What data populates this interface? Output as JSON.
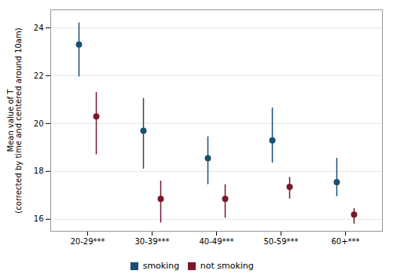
{
  "chart_data": {
    "type": "errorbar",
    "ylabel": "Mean value of T\n(corrected by time and centered around 10am)",
    "categories": [
      "20-29***",
      "30-39***",
      "40-49***",
      "50-59***",
      "60+***"
    ],
    "series": [
      {
        "name": "smoking",
        "color": "#1b4f72",
        "values": [
          23.3,
          19.7,
          18.55,
          19.3,
          17.55
        ],
        "ci_low": [
          21.95,
          18.1,
          17.45,
          18.35,
          16.95
        ],
        "ci_high": [
          24.2,
          21.05,
          19.45,
          20.65,
          18.55
        ]
      },
      {
        "name": "not smoking",
        "color": "#7b1728",
        "values": [
          20.3,
          16.85,
          16.85,
          17.35,
          16.2
        ],
        "ci_low": [
          18.7,
          15.85,
          16.05,
          16.85,
          15.8
        ],
        "ci_high": [
          21.3,
          17.6,
          17.45,
          17.75,
          16.45
        ]
      }
    ],
    "ylim": [
      15.5,
      24.75
    ],
    "yticks": [
      16,
      18,
      20,
      22,
      24
    ],
    "grid": true,
    "legend": "bottom",
    "marker": "circle"
  }
}
